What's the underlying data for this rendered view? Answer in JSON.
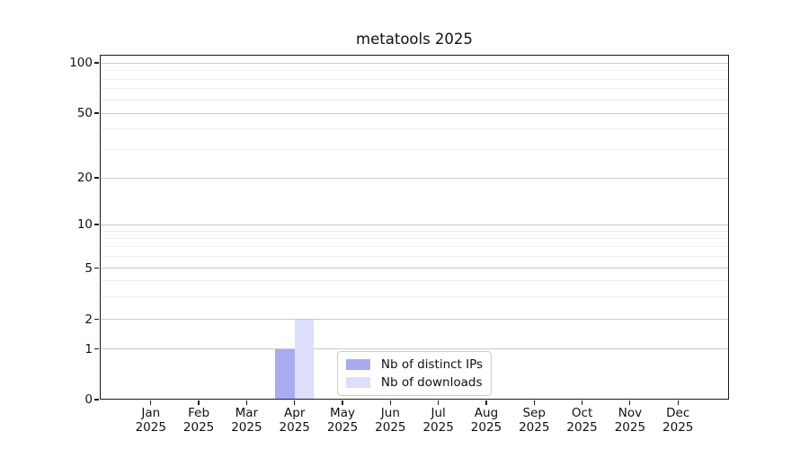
{
  "figure": {
    "background": "#ffffff"
  },
  "chart_data": {
    "type": "bar",
    "title": "metatools 2025",
    "categories": [
      "Jan 2025",
      "Feb 2025",
      "Mar 2025",
      "Apr 2025",
      "May 2025",
      "Jun 2025",
      "Jul 2025",
      "Aug 2025",
      "Sep 2025",
      "Oct 2025",
      "Nov 2025",
      "Dec 2025"
    ],
    "x_tick_labels": [
      [
        "Jan",
        "2025"
      ],
      [
        "Feb",
        "2025"
      ],
      [
        "Mar",
        "2025"
      ],
      [
        "Apr",
        "2025"
      ],
      [
        "May",
        "2025"
      ],
      [
        "Jun",
        "2025"
      ],
      [
        "Jul",
        "2025"
      ],
      [
        "Aug",
        "2025"
      ],
      [
        "Sep",
        "2025"
      ],
      [
        "Oct",
        "2025"
      ],
      [
        "Nov",
        "2025"
      ],
      [
        "Dec",
        "2025"
      ]
    ],
    "series": [
      {
        "name": "Nb of distinct IPs",
        "color": "#a8abf0",
        "values": [
          0,
          0,
          0,
          1,
          0,
          0,
          0,
          0,
          0,
          0,
          0,
          0
        ]
      },
      {
        "name": "Nb of downloads",
        "color": "#dcdefa",
        "values": [
          0,
          0,
          0,
          2,
          0,
          0,
          0,
          0,
          0,
          0,
          0,
          0
        ]
      }
    ],
    "y_axis": {
      "scale": "symlog",
      "major_ticks": [
        0,
        1,
        2,
        5,
        10,
        20,
        50,
        100
      ],
      "minor_ticks": [
        3,
        4,
        6,
        7,
        8,
        9,
        30,
        40,
        60,
        70,
        80,
        90
      ],
      "range": [
        0,
        115
      ]
    },
    "legend": {
      "position": "lower center"
    },
    "grid": {
      "axis": "y",
      "major_color": "#c9c9c9",
      "minor_color": "#ececec"
    },
    "colors": {
      "spine": "#1a1a1a",
      "text": "#111111",
      "legend_border": "#cccccc"
    }
  }
}
